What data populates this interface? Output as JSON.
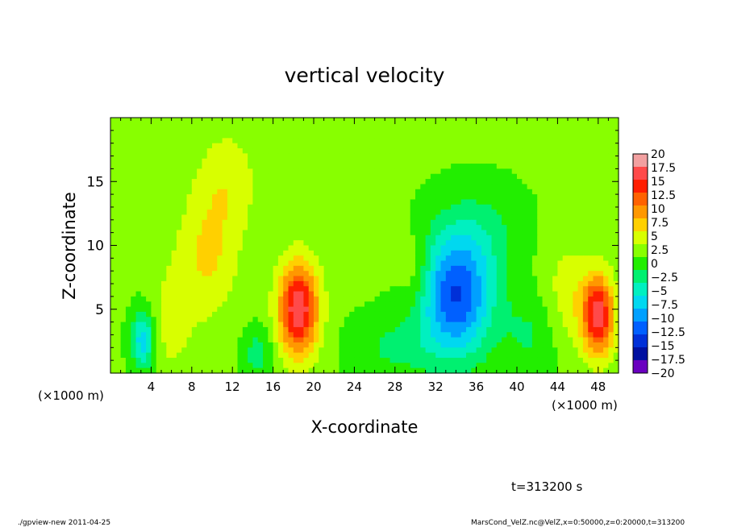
{
  "chart_data": {
    "type": "heatmap",
    "title": "vertical velocity",
    "xlabel": "X-coordinate",
    "ylabel": "Z-coordinate",
    "x_unit_label": "(×1000 m)",
    "x_unit_label_right": "(×1000 m)",
    "xlim": [
      0,
      50
    ],
    "ylim": [
      0,
      20
    ],
    "x_ticks": [
      4,
      8,
      12,
      16,
      20,
      24,
      28,
      32,
      36,
      40,
      44,
      48
    ],
    "y_ticks": [
      5,
      10,
      15
    ],
    "colorbar": {
      "levels": [
        20,
        17.5,
        15,
        12.5,
        10,
        7.5,
        5,
        2.5,
        0,
        -2.5,
        -5,
        -7.5,
        -10,
        -12.5,
        -15,
        -17.5,
        -20
      ],
      "level_labels": [
        "20",
        "17.5",
        "15",
        "12.5",
        "10",
        "7.5",
        "5",
        "2.5",
        "0",
        "−2.5",
        "−5",
        "−7.5",
        "−10",
        "−12.5",
        "−15",
        "−17.5",
        "−20"
      ],
      "colors": [
        "#f2a0a0",
        "#ff4a4a",
        "#ff1e00",
        "#ff6200",
        "#ff9800",
        "#ffd000",
        "#d8ff00",
        "#88ff00",
        "#22ee00",
        "#00f070",
        "#00f0c0",
        "#00d8f0",
        "#00a0ff",
        "#0060ff",
        "#0030d8",
        "#0010a0",
        "#6a00c0"
      ]
    },
    "background_value": 1.5,
    "features": [
      {
        "x": 18.5,
        "z": 5.0,
        "sx": 1.4,
        "sz": 2.6,
        "value": 16
      },
      {
        "x": 48.0,
        "z": 4.5,
        "sx": 1.1,
        "sz": 2.2,
        "value": 15
      },
      {
        "x": 34.0,
        "z": 6.0,
        "sx": 2.5,
        "sz": 3.3,
        "value": -14.5
      },
      {
        "x": 3.2,
        "z": 2.6,
        "sx": 0.8,
        "sz": 1.6,
        "value": -9
      },
      {
        "x": 9.5,
        "z": 9.0,
        "sx": 2.2,
        "sz": 3.5,
        "value": 4.5
      },
      {
        "x": 11.5,
        "z": 15.0,
        "sx": 2.2,
        "sz": 3.0,
        "value": 3.5
      },
      {
        "x": 6.0,
        "z": 4.0,
        "sx": 1.5,
        "sz": 3.0,
        "value": 3
      },
      {
        "x": 45.0,
        "z": 6.0,
        "sx": 1.8,
        "sz": 3.0,
        "value": 3.5
      },
      {
        "x": 30.0,
        "z": 8.0,
        "sx": 1.2,
        "sz": 2.0,
        "value": 3
      },
      {
        "x": 14.5,
        "z": 1.5,
        "sx": 1.0,
        "sz": 1.5,
        "value": -4
      },
      {
        "x": 28.0,
        "z": 2.0,
        "sx": 3.0,
        "sz": 1.8,
        "value": -3
      },
      {
        "x": 41.5,
        "z": 3.0,
        "sx": 2.0,
        "sz": 2.5,
        "value": -3
      },
      {
        "x": 36.5,
        "z": 11.0,
        "sx": 3.0,
        "sz": 2.5,
        "value": -3
      }
    ],
    "time_label": "t=313200 s",
    "footer_left": "./gpview-new  2011-04-25",
    "footer_right": "MarsCond_VelZ.nc@VelZ,x=0:50000,z=0:20000,t=313200"
  }
}
